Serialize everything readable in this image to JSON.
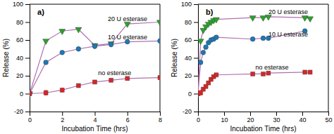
{
  "chart_data": [
    {
      "type": "line",
      "title": "a)",
      "xlabel": "Incubation Time (hrs)",
      "ylabel": "Release (%)",
      "xlim": [
        0,
        8
      ],
      "ylim": [
        -20,
        100
      ],
      "xticks": [
        0,
        2,
        4,
        6,
        8
      ],
      "yticks": [
        -20,
        0,
        20,
        40,
        60,
        80,
        100
      ],
      "color": "#b070b0",
      "grid": false,
      "series": [
        {
          "color": "#2ca02c",
          "marker": "triangle-down",
          "x": [
            0,
            1,
            2,
            3,
            4,
            5,
            6,
            8
          ],
          "values": [
            0,
            59,
            70,
            72,
            54,
            56,
            78,
            80
          ]
        },
        {
          "color": "#1f77b4",
          "marker": "circle",
          "x": [
            0,
            1,
            2,
            3,
            4,
            5,
            6,
            8
          ],
          "values": [
            0,
            35,
            46,
            50,
            53,
            55,
            58,
            59
          ]
        },
        {
          "color": "#d62728",
          "marker": "square",
          "x": [
            0,
            1,
            2,
            3,
            4,
            5,
            6,
            8
          ],
          "values": [
            0,
            1,
            4,
            9,
            13,
            15,
            17,
            18
          ],
          "errors": [
            null,
            2.5,
            2.0,
            null,
            null,
            null,
            null,
            null
          ]
        }
      ],
      "annotations": [
        {
          "text": "20 U esterase",
          "x": 4.8,
          "y": 81
        },
        {
          "text": "10 U esterase",
          "x": 4.8,
          "y": 61
        },
        {
          "text": "no esterase",
          "x": 4.2,
          "y": 21
        }
      ]
    },
    {
      "type": "line",
      "title": "b)",
      "xlabel": "Incubation Time (hrs)",
      "ylabel": "Release (%)",
      "xlim": [
        0,
        50
      ],
      "ylim": [
        -20,
        100
      ],
      "xticks": [
        0,
        10,
        20,
        30,
        40,
        50
      ],
      "yticks": [
        -20,
        0,
        20,
        40,
        60,
        80,
        100
      ],
      "color": "#b070b0",
      "grid": false,
      "series": [
        {
          "color": "#2ca02c",
          "marker": "triangle-down",
          "x": [
            0,
            1,
            2,
            3,
            4,
            5,
            6,
            7,
            21,
            25,
            27,
            41,
            43
          ],
          "values": [
            0,
            59,
            71,
            75,
            78,
            80,
            82,
            83,
            85,
            85,
            86,
            85,
            84
          ]
        },
        {
          "color": "#1f77b4",
          "marker": "circle",
          "x": [
            0,
            1,
            2,
            3,
            4,
            5,
            6,
            7,
            21,
            25,
            27,
            41
          ],
          "values": [
            0,
            35,
            46,
            52,
            57,
            60,
            61,
            63,
            61,
            62,
            62,
            70
          ]
        },
        {
          "color": "#d62728",
          "marker": "square",
          "x": [
            0,
            1,
            2,
            3,
            4,
            5,
            6,
            7,
            21,
            25,
            27,
            41,
            43
          ],
          "values": [
            0,
            1,
            5,
            8,
            12,
            16,
            19,
            21,
            22,
            22,
            23,
            24,
            24
          ],
          "errors": [
            null,
            2.5,
            2.0,
            1.5,
            null,
            null,
            null,
            null,
            null,
            null,
            null,
            null,
            null
          ]
        }
      ],
      "annotations": [
        {
          "text": "20 U esterase",
          "x": 27,
          "y": 89
        },
        {
          "text": "10 U esterase",
          "x": 27,
          "y": 64
        },
        {
          "text": "no esterase",
          "x": 22,
          "y": 27
        }
      ]
    }
  ]
}
